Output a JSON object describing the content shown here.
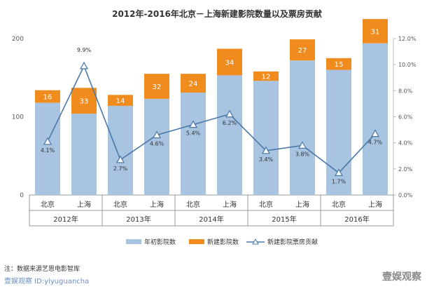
{
  "chart_data": {
    "type": "bar",
    "title": "2012年-2016年北京－上海新建影院数量以及票房贡献",
    "years": [
      "2012年",
      "2013年",
      "2014年",
      "2015年",
      "2016年"
    ],
    "categories": [
      "北京",
      "上海",
      "北京",
      "上海",
      "北京",
      "上海",
      "北京",
      "上海",
      "北京",
      "上海"
    ],
    "series": [
      {
        "name": "年初影院数",
        "type": "bar",
        "stacked": true,
        "color": "#a9c4e0",
        "values": [
          118,
          104,
          114,
          123,
          131,
          153,
          146,
          172,
          160,
          194
        ]
      },
      {
        "name": "新建影院数",
        "type": "bar",
        "stacked": true,
        "color": "#f08c1e",
        "values": [
          16,
          33,
          14,
          32,
          24,
          34,
          12,
          27,
          15,
          31
        ]
      },
      {
        "name": "新建影院票房贡献",
        "type": "line",
        "axis": "right",
        "color": "#4a78a8",
        "values": [
          4.1,
          9.9,
          2.7,
          4.6,
          5.4,
          6.2,
          3.4,
          3.8,
          1.7,
          4.7
        ],
        "labels": [
          "4.1%",
          "9.9%",
          "2.7%",
          "4.6%",
          "5.4%",
          "6.2%",
          "3.4%",
          "3.8%",
          "1.7%",
          "4.7%"
        ]
      }
    ],
    "ylim": [
      0,
      200
    ],
    "yticks": [
      "0",
      "100",
      "200"
    ],
    "y2lim": [
      0,
      12
    ],
    "y2ticks": [
      "0.0%",
      "2.0%",
      "4.0%",
      "6.0%",
      "8.0%",
      "10.0%",
      "12.0%"
    ],
    "grid": true,
    "legend_position": "bottom"
  },
  "footer": {
    "note": "注：数据来源艺恩电影智库",
    "source": "壹娱观察  ID:yiyuguancha",
    "brand": "壹娱观察"
  }
}
